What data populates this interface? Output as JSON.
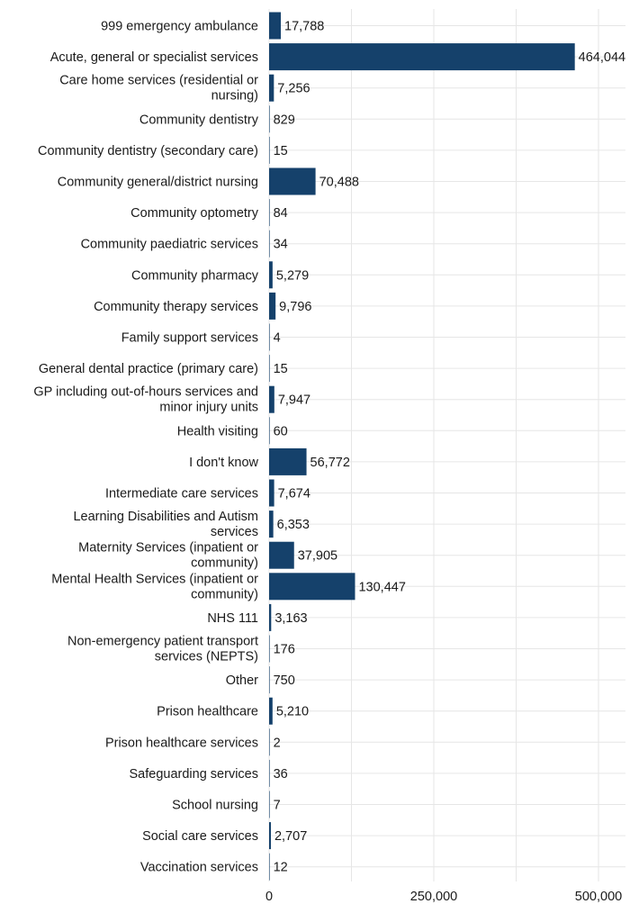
{
  "chart_data": {
    "type": "bar",
    "orientation": "horizontal",
    "categories": [
      "999 emergency ambulance",
      "Acute, general or specialist services",
      "Care home services (residential or nursing)",
      "Community dentistry",
      "Community dentistry (secondary care)",
      "Community general/district nursing",
      "Community optometry",
      "Community paediatric services",
      "Community pharmacy",
      "Community therapy services",
      "Family support services",
      "General dental practice (primary care)",
      "GP including out-of-hours services and minor injury units",
      "Health visiting",
      "I don't know",
      "Intermediate care services",
      "Learning Disabilities and Autism services",
      "Maternity Services (inpatient or community)",
      "Mental Health Services (inpatient or community)",
      "NHS 111",
      "Non-emergency patient transport services (NEPTS)",
      "Other",
      "Prison healthcare",
      "Prison healthcare services",
      "Safeguarding services",
      "School nursing",
      "Social care services",
      "Vaccination services"
    ],
    "category_lines": [
      [
        "999 emergency ambulance"
      ],
      [
        "Acute, general or specialist services"
      ],
      [
        "Care home services (residential or",
        "nursing)"
      ],
      [
        "Community dentistry"
      ],
      [
        "Community dentistry (secondary care)"
      ],
      [
        "Community general/district nursing"
      ],
      [
        "Community optometry"
      ],
      [
        "Community paediatric services"
      ],
      [
        "Community pharmacy"
      ],
      [
        "Community therapy services"
      ],
      [
        "Family support services"
      ],
      [
        "General dental practice (primary care)"
      ],
      [
        "GP including out-of-hours services and",
        "minor injury units"
      ],
      [
        "Health visiting"
      ],
      [
        "I don't know"
      ],
      [
        "Intermediate care services"
      ],
      [
        "Learning Disabilities and Autism",
        "services"
      ],
      [
        "Maternity Services (inpatient or",
        "community)"
      ],
      [
        "Mental Health Services (inpatient or",
        "community)"
      ],
      [
        "NHS 111"
      ],
      [
        "Non-emergency patient transport",
        "services (NEPTS)"
      ],
      [
        "Other"
      ],
      [
        "Prison healthcare"
      ],
      [
        "Prison healthcare services"
      ],
      [
        "Safeguarding services"
      ],
      [
        "School nursing"
      ],
      [
        "Social care services"
      ],
      [
        "Vaccination services"
      ]
    ],
    "values": [
      17788,
      464044,
      7256,
      829,
      15,
      70488,
      84,
      34,
      5279,
      9796,
      4,
      15,
      7947,
      60,
      56772,
      7674,
      6353,
      37905,
      130447,
      3163,
      176,
      750,
      5210,
      2,
      36,
      7,
      2707,
      12
    ],
    "value_labels": [
      "17,788",
      "464,044",
      "7,256",
      "829",
      "15",
      "70,488",
      "84",
      "34",
      "5,279",
      "9,796",
      "4",
      "15",
      "7,947",
      "60",
      "56,772",
      "7,674",
      "6,353",
      "37,905",
      "130,447",
      "3,163",
      "176",
      "750",
      "5,210",
      "2",
      "36",
      "7",
      "2,707",
      "12"
    ],
    "xlim": [
      0,
      540000
    ],
    "x_ticks": [
      0,
      250000,
      500000
    ],
    "x_tick_labels": [
      "0",
      "250,000",
      "500,000"
    ],
    "grid": true,
    "bar_color": "#15416B",
    "grid_color": "#E6E6E6",
    "title": "",
    "xlabel": "",
    "ylabel": ""
  }
}
